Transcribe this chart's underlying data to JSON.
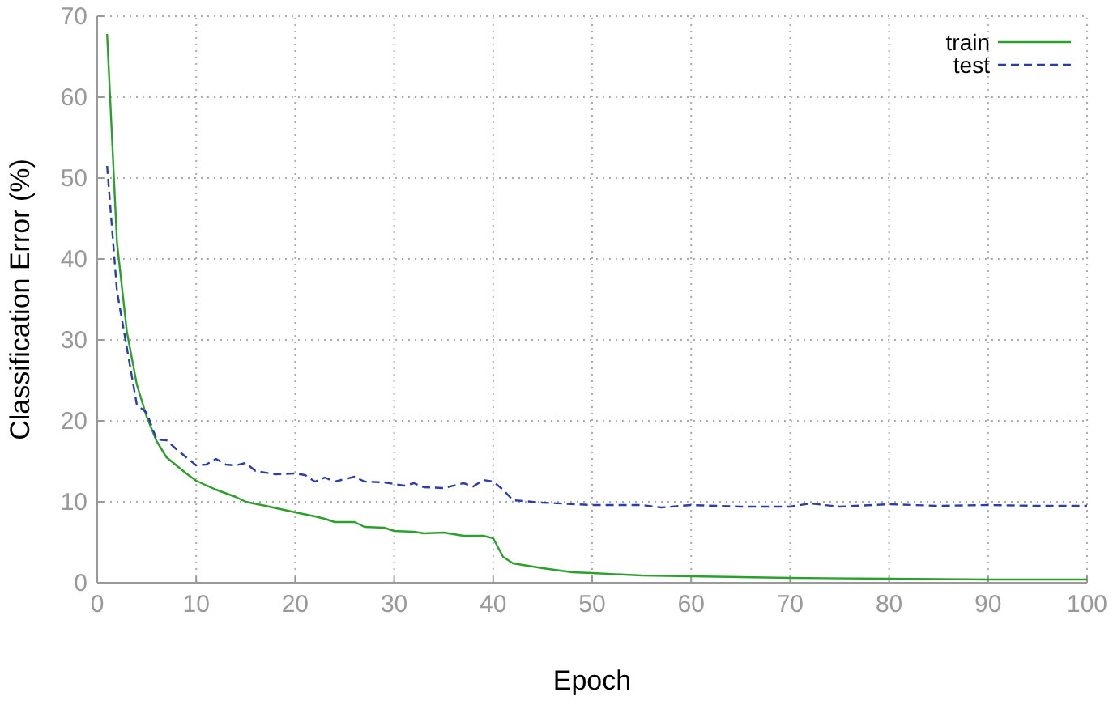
{
  "chart_data": {
    "type": "line",
    "xlabel": "Epoch",
    "ylabel": "Classification Error (%)",
    "xlim": [
      0,
      100
    ],
    "xticks": [
      0,
      10,
      20,
      30,
      40,
      50,
      60,
      70,
      80,
      90,
      100
    ],
    "ylim": [
      0,
      70
    ],
    "yticks": [
      0,
      10,
      20,
      30,
      40,
      50,
      60,
      70
    ],
    "grid": true,
    "legend": "top right",
    "marker": "none",
    "series": [
      {
        "name": "train",
        "color": "#2ca02c",
        "line_style": "solid",
        "x": [
          1,
          2,
          3,
          4,
          5,
          6,
          7,
          8,
          9,
          10,
          12,
          14,
          15,
          17,
          20,
          22,
          23,
          24,
          26,
          27,
          29,
          30,
          32,
          33,
          35,
          37,
          39,
          40,
          41,
          42,
          45,
          48,
          50,
          55,
          60,
          70,
          80,
          90,
          100
        ],
        "values": [
          67.8,
          42,
          31,
          24.5,
          20.5,
          17.5,
          15.5,
          14.5,
          13.5,
          12.6,
          11.5,
          10.6,
          10,
          9.5,
          8.7,
          8.2,
          7.9,
          7.5,
          7.5,
          6.9,
          6.8,
          6.4,
          6.3,
          6.1,
          6.2,
          5.8,
          5.8,
          5.5,
          3.2,
          2.4,
          1.8,
          1.3,
          1.2,
          0.9,
          0.8,
          0.6,
          0.5,
          0.4,
          0.4
        ]
      },
      {
        "name": "test",
        "color": "#2b3ea8",
        "line_style": "dashed",
        "x": [
          1,
          2,
          3,
          4,
          5,
          6,
          7,
          8,
          9,
          10,
          11,
          12,
          13,
          14,
          15,
          16,
          18,
          20,
          21,
          22,
          23,
          24,
          26,
          27,
          29,
          31,
          32,
          33,
          35,
          37,
          38,
          39,
          40,
          41,
          42,
          45,
          50,
          55,
          57,
          60,
          65,
          70,
          72,
          75,
          80,
          85,
          90,
          95,
          100
        ],
        "values": [
          51.5,
          36,
          29,
          22,
          21,
          17.7,
          17.6,
          16.5,
          15.5,
          14.5,
          14.6,
          15.3,
          14.6,
          14.5,
          14.8,
          13.8,
          13.4,
          13.5,
          13.3,
          12.5,
          13,
          12.5,
          13.1,
          12.5,
          12.4,
          12,
          12.3,
          11.8,
          11.7,
          12.3,
          11.9,
          12.7,
          12.5,
          11.5,
          10.2,
          9.9,
          9.6,
          9.6,
          9.3,
          9.6,
          9.4,
          9.4,
          9.8,
          9.4,
          9.7,
          9.5,
          9.6,
          9.5,
          9.5
        ]
      }
    ]
  }
}
